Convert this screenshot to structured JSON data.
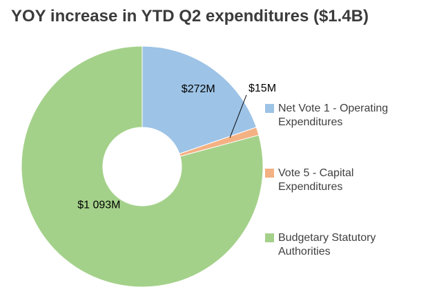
{
  "chart_data": {
    "type": "pie",
    "subtype": "donut",
    "title": "YOY increase in YTD Q2 expenditures ($1.4B)",
    "total_label": "$1.4B",
    "unit": "$M",
    "legend_position": "right",
    "start_angle_deg": 0,
    "direction": "clockwise",
    "slices": [
      {
        "label": "Net Vote 1 - Operating Expenditures",
        "value": 272,
        "display": "$272M",
        "color": "#9DC3E6",
        "label_placement": "inside"
      },
      {
        "label": "Vote 5 - Capital Expenditures",
        "value": 15,
        "display": "$15M",
        "color": "#F4B183",
        "label_placement": "outside"
      },
      {
        "label": "Budgetary Statutory Authorities",
        "value": 1093,
        "display": "$1 093M",
        "color": "#A4D18A",
        "label_placement": "inside"
      }
    ]
  }
}
